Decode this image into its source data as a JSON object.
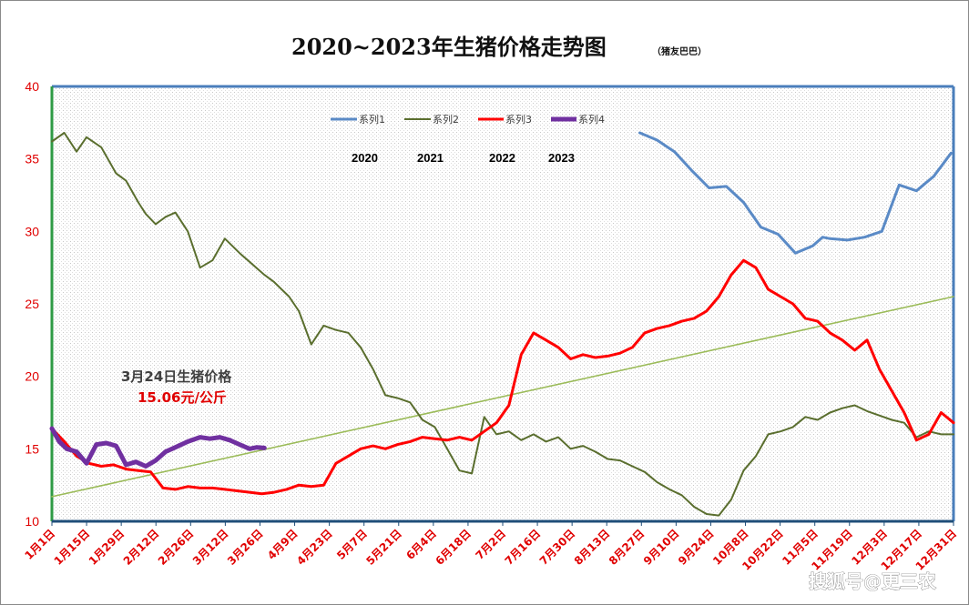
{
  "chart_data": {
    "type": "line",
    "title": "2020~2023年生猪价格走势图",
    "subtitle": "（猪友巴巴）",
    "ylim": [
      10,
      40
    ],
    "y_ticks": [
      10,
      15,
      20,
      25,
      30,
      35,
      40
    ],
    "x_ticks": [
      "1月1日",
      "1月15日",
      "1月29日",
      "2月12日",
      "2月26日",
      "3月12日",
      "3月26日",
      "4月9日",
      "4月23日",
      "5月7日",
      "5月21日",
      "6月4日",
      "6月18日",
      "7月2日",
      "7月16日",
      "7月30日",
      "8月13日",
      "8月27日",
      "9月10日",
      "9月24日",
      "10月8日",
      "10月22日",
      "11月5日",
      "11月19日",
      "12月3日",
      "12月17日",
      "12月31日"
    ],
    "x_domain": [
      0,
      365
    ],
    "grid": false,
    "legend": {
      "placement": "top-center",
      "entries": [
        "系列1",
        "系列2",
        "系列3",
        "系列4"
      ]
    },
    "year_labels": [
      "2020",
      "2021",
      "2022",
      "2023"
    ],
    "series": [
      {
        "name": "系列1",
        "color": "#5a8ac6",
        "x": [
          238,
          245,
          252,
          259,
          266,
          273,
          280,
          287,
          294,
          301,
          308,
          312,
          315,
          322,
          329,
          336,
          343,
          350,
          357,
          364
        ],
        "values": [
          36.8,
          36.3,
          35.5,
          34.2,
          33.0,
          33.1,
          32.0,
          30.3,
          29.8,
          28.5,
          29.0,
          29.6,
          29.5,
          29.4,
          29.6,
          30.0,
          33.2,
          32.8,
          33.8,
          35.4
        ]
      },
      {
        "name": "系列2",
        "color": "#5a6e2e",
        "x": [
          0,
          5,
          10,
          14,
          20,
          26,
          30,
          35,
          38,
          42,
          46,
          50,
          55,
          60,
          65,
          70,
          76,
          80,
          86,
          90,
          96,
          100,
          105,
          110,
          115,
          120,
          125,
          130,
          135,
          140,
          145,
          150,
          155,
          160,
          165,
          170,
          175,
          180,
          185,
          190,
          195,
          200,
          205,
          210,
          215,
          220,
          225,
          230,
          235,
          240,
          245,
          250,
          255,
          260,
          265,
          270,
          275,
          280,
          285,
          290,
          295,
          300,
          305,
          310,
          315,
          320,
          325,
          330,
          335,
          340,
          345,
          350,
          355,
          360,
          365
        ],
        "values": [
          36.2,
          36.8,
          35.5,
          36.5,
          35.8,
          34.0,
          33.5,
          32.0,
          31.2,
          30.5,
          31.0,
          31.3,
          30.0,
          27.5,
          28.0,
          29.5,
          28.5,
          27.9,
          27.0,
          26.5,
          25.5,
          24.5,
          22.2,
          23.5,
          23.2,
          23.0,
          22.0,
          20.5,
          18.7,
          18.5,
          18.2,
          17.0,
          16.5,
          15.0,
          13.5,
          13.3,
          17.2,
          16.0,
          16.2,
          15.6,
          16.0,
          15.5,
          15.8,
          15.0,
          15.2,
          14.8,
          14.3,
          14.2,
          13.8,
          13.4,
          12.7,
          12.2,
          11.8,
          11.0,
          10.5,
          10.4,
          11.5,
          13.5,
          14.5,
          16.0,
          16.2,
          16.5,
          17.2,
          17.0,
          17.5,
          17.8,
          18.0,
          17.6,
          17.3,
          17.0,
          16.8,
          15.8,
          16.2,
          16.0,
          16.0
        ]
      },
      {
        "name": "系列3",
        "color": "#ff0000",
        "x": [
          0,
          5,
          10,
          15,
          20,
          25,
          30,
          35,
          40,
          45,
          50,
          55,
          60,
          65,
          70,
          75,
          80,
          85,
          90,
          95,
          100,
          105,
          110,
          115,
          120,
          125,
          130,
          135,
          140,
          145,
          150,
          155,
          160,
          165,
          170,
          175,
          180,
          185,
          190,
          195,
          200,
          205,
          210,
          215,
          220,
          225,
          230,
          235,
          240,
          245,
          250,
          255,
          260,
          265,
          270,
          275,
          280,
          285,
          290,
          295,
          300,
          305,
          310,
          315,
          320,
          325,
          330,
          335,
          340,
          345,
          350,
          355,
          360,
          365
        ],
        "values": [
          16.4,
          15.5,
          14.5,
          14.0,
          13.8,
          13.9,
          13.6,
          13.5,
          13.4,
          12.3,
          12.2,
          12.4,
          12.3,
          12.3,
          12.2,
          12.1,
          12.0,
          11.9,
          12.0,
          12.2,
          12.5,
          12.4,
          12.5,
          14.0,
          14.5,
          15.0,
          15.2,
          15.0,
          15.3,
          15.5,
          15.8,
          15.7,
          15.6,
          15.8,
          15.6,
          16.2,
          16.8,
          18.0,
          21.5,
          23.0,
          22.5,
          22.0,
          21.2,
          21.5,
          21.3,
          21.4,
          21.6,
          22.0,
          23.0,
          23.3,
          23.5,
          23.8,
          24.0,
          24.5,
          25.5,
          27.0,
          28.0,
          27.5,
          26.0,
          25.5,
          25.0,
          24.0,
          23.8,
          23.0,
          22.5,
          21.8,
          22.5,
          20.5,
          19.0,
          17.5,
          15.6,
          16.0,
          17.5,
          16.8
        ]
      },
      {
        "name": "系列4",
        "color": "#7030a0",
        "x": [
          0,
          3,
          6,
          10,
          14,
          18,
          22,
          26,
          30,
          34,
          38,
          42,
          46,
          50,
          55,
          60,
          64,
          68,
          72,
          76,
          80,
          83,
          86
        ],
        "values": [
          16.4,
          15.5,
          15.0,
          14.8,
          14.0,
          15.3,
          15.4,
          15.2,
          13.9,
          14.1,
          13.8,
          14.2,
          14.8,
          15.1,
          15.5,
          15.8,
          15.7,
          15.8,
          15.6,
          15.3,
          15.0,
          15.1,
          15.06
        ]
      },
      {
        "name": "trend",
        "color": "#9bbb59",
        "x": [
          0,
          365
        ],
        "values": [
          11.7,
          25.5
        ]
      }
    ],
    "annotation": {
      "title": "3月24日生猪价格",
      "value": "15.06元/公斤"
    }
  },
  "watermark": "搜狐号@更三农"
}
